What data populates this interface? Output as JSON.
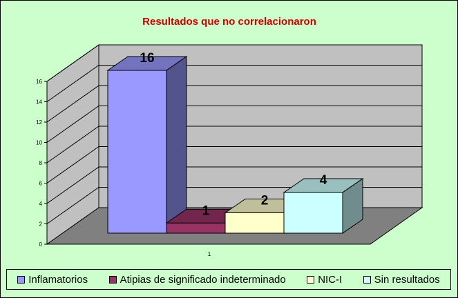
{
  "chart_data": {
    "type": "bar",
    "title": "Resultados que no correlacionaron",
    "categories": [
      "1"
    ],
    "series": [
      {
        "name": "Inflamatorios",
        "values": [
          16
        ],
        "color": "#9999ff"
      },
      {
        "name": "Atipias de significado indeterminado",
        "values": [
          1
        ],
        "color": "#993366"
      },
      {
        "name": "NIC-I",
        "values": [
          2
        ],
        "color": "#ffffcc"
      },
      {
        "name": "Sin resultados",
        "values": [
          4
        ],
        "color": "#ccffff"
      }
    ],
    "ylim": [
      0,
      16
    ],
    "yticks": [
      "0",
      "2",
      "4",
      "6",
      "8",
      "10",
      "12",
      "14",
      "16"
    ],
    "xlabel": "",
    "ylabel": "",
    "grid": true,
    "legend": "bottom",
    "three_d": true,
    "title_color": "#cc0000",
    "wall_color": "#c0c0c0",
    "floor_color": "#808080"
  }
}
